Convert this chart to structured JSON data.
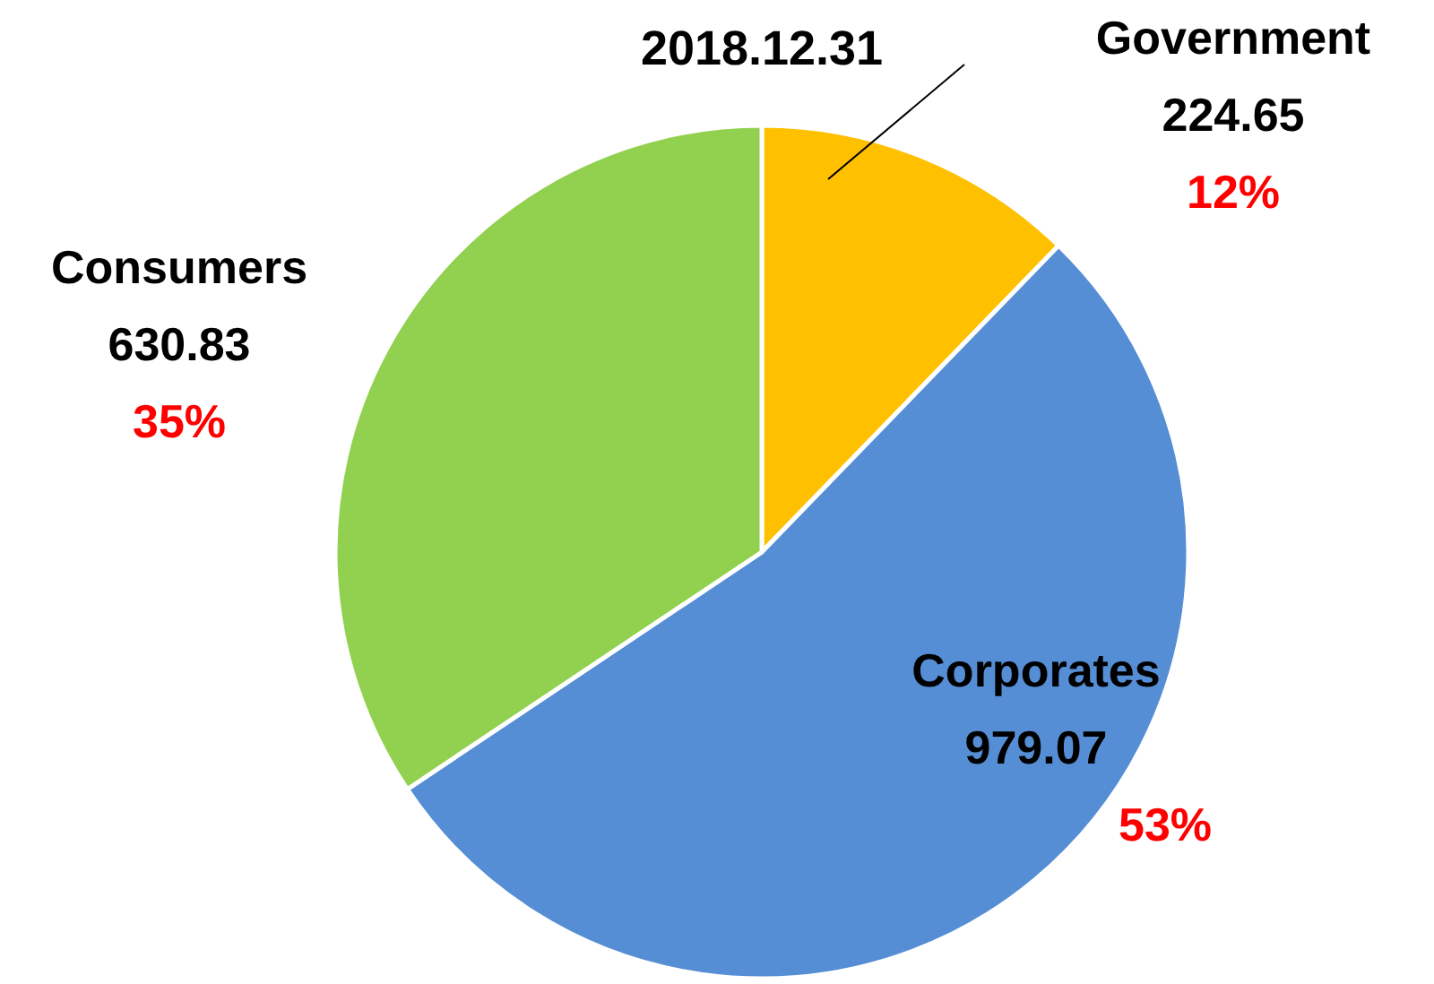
{
  "chart_data": {
    "type": "pie",
    "title": "2018.12.31",
    "categories": [
      "Government",
      "Corporates",
      "Consumers"
    ],
    "values": [
      224.65,
      979.07,
      630.83
    ],
    "colors": [
      "#ffc000",
      "#558ed5",
      "#92d050"
    ],
    "data_labels": true,
    "legend": false,
    "annotations": [
      {
        "text": "12%",
        "x": "Government"
      },
      {
        "text": "53%",
        "x": "Corporates"
      },
      {
        "text": "35%",
        "x": "Consumers"
      }
    ]
  }
}
